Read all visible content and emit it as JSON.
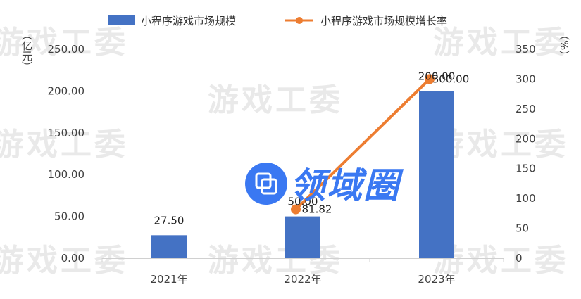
{
  "chart_data": {
    "type": "bar+line",
    "categories": [
      "2021年",
      "2022年",
      "2023年"
    ],
    "series": [
      {
        "name": "小程序游戏市场规模",
        "type": "bar",
        "axis": "left",
        "values": [
          27.5,
          50.0,
          200.0
        ],
        "labels": [
          "27.50",
          "50.00",
          "200.00"
        ]
      },
      {
        "name": "小程序游戏市场规模增长率",
        "type": "line",
        "axis": "right",
        "values": [
          null,
          81.82,
          300.0
        ],
        "labels": [
          "",
          "81.82",
          "300.00"
        ]
      }
    ],
    "left_axis": {
      "label": "（亿元）",
      "ylim": [
        0,
        250
      ],
      "ticks": [
        "0.00",
        "50.00",
        "100.00",
        "150.00",
        "200.00",
        "250.00"
      ]
    },
    "right_axis": {
      "label": "（%）",
      "ylim": [
        0,
        350
      ],
      "ticks": [
        "0",
        "50",
        "100",
        "150",
        "200",
        "250",
        "300",
        "350"
      ]
    },
    "legend_position": "top",
    "grid": false,
    "colors": {
      "bar": "#4472c4",
      "line": "#ed7d31"
    }
  },
  "watermarks": {
    "repeat_text": "游戏工委",
    "logo_text": "领域圈"
  }
}
